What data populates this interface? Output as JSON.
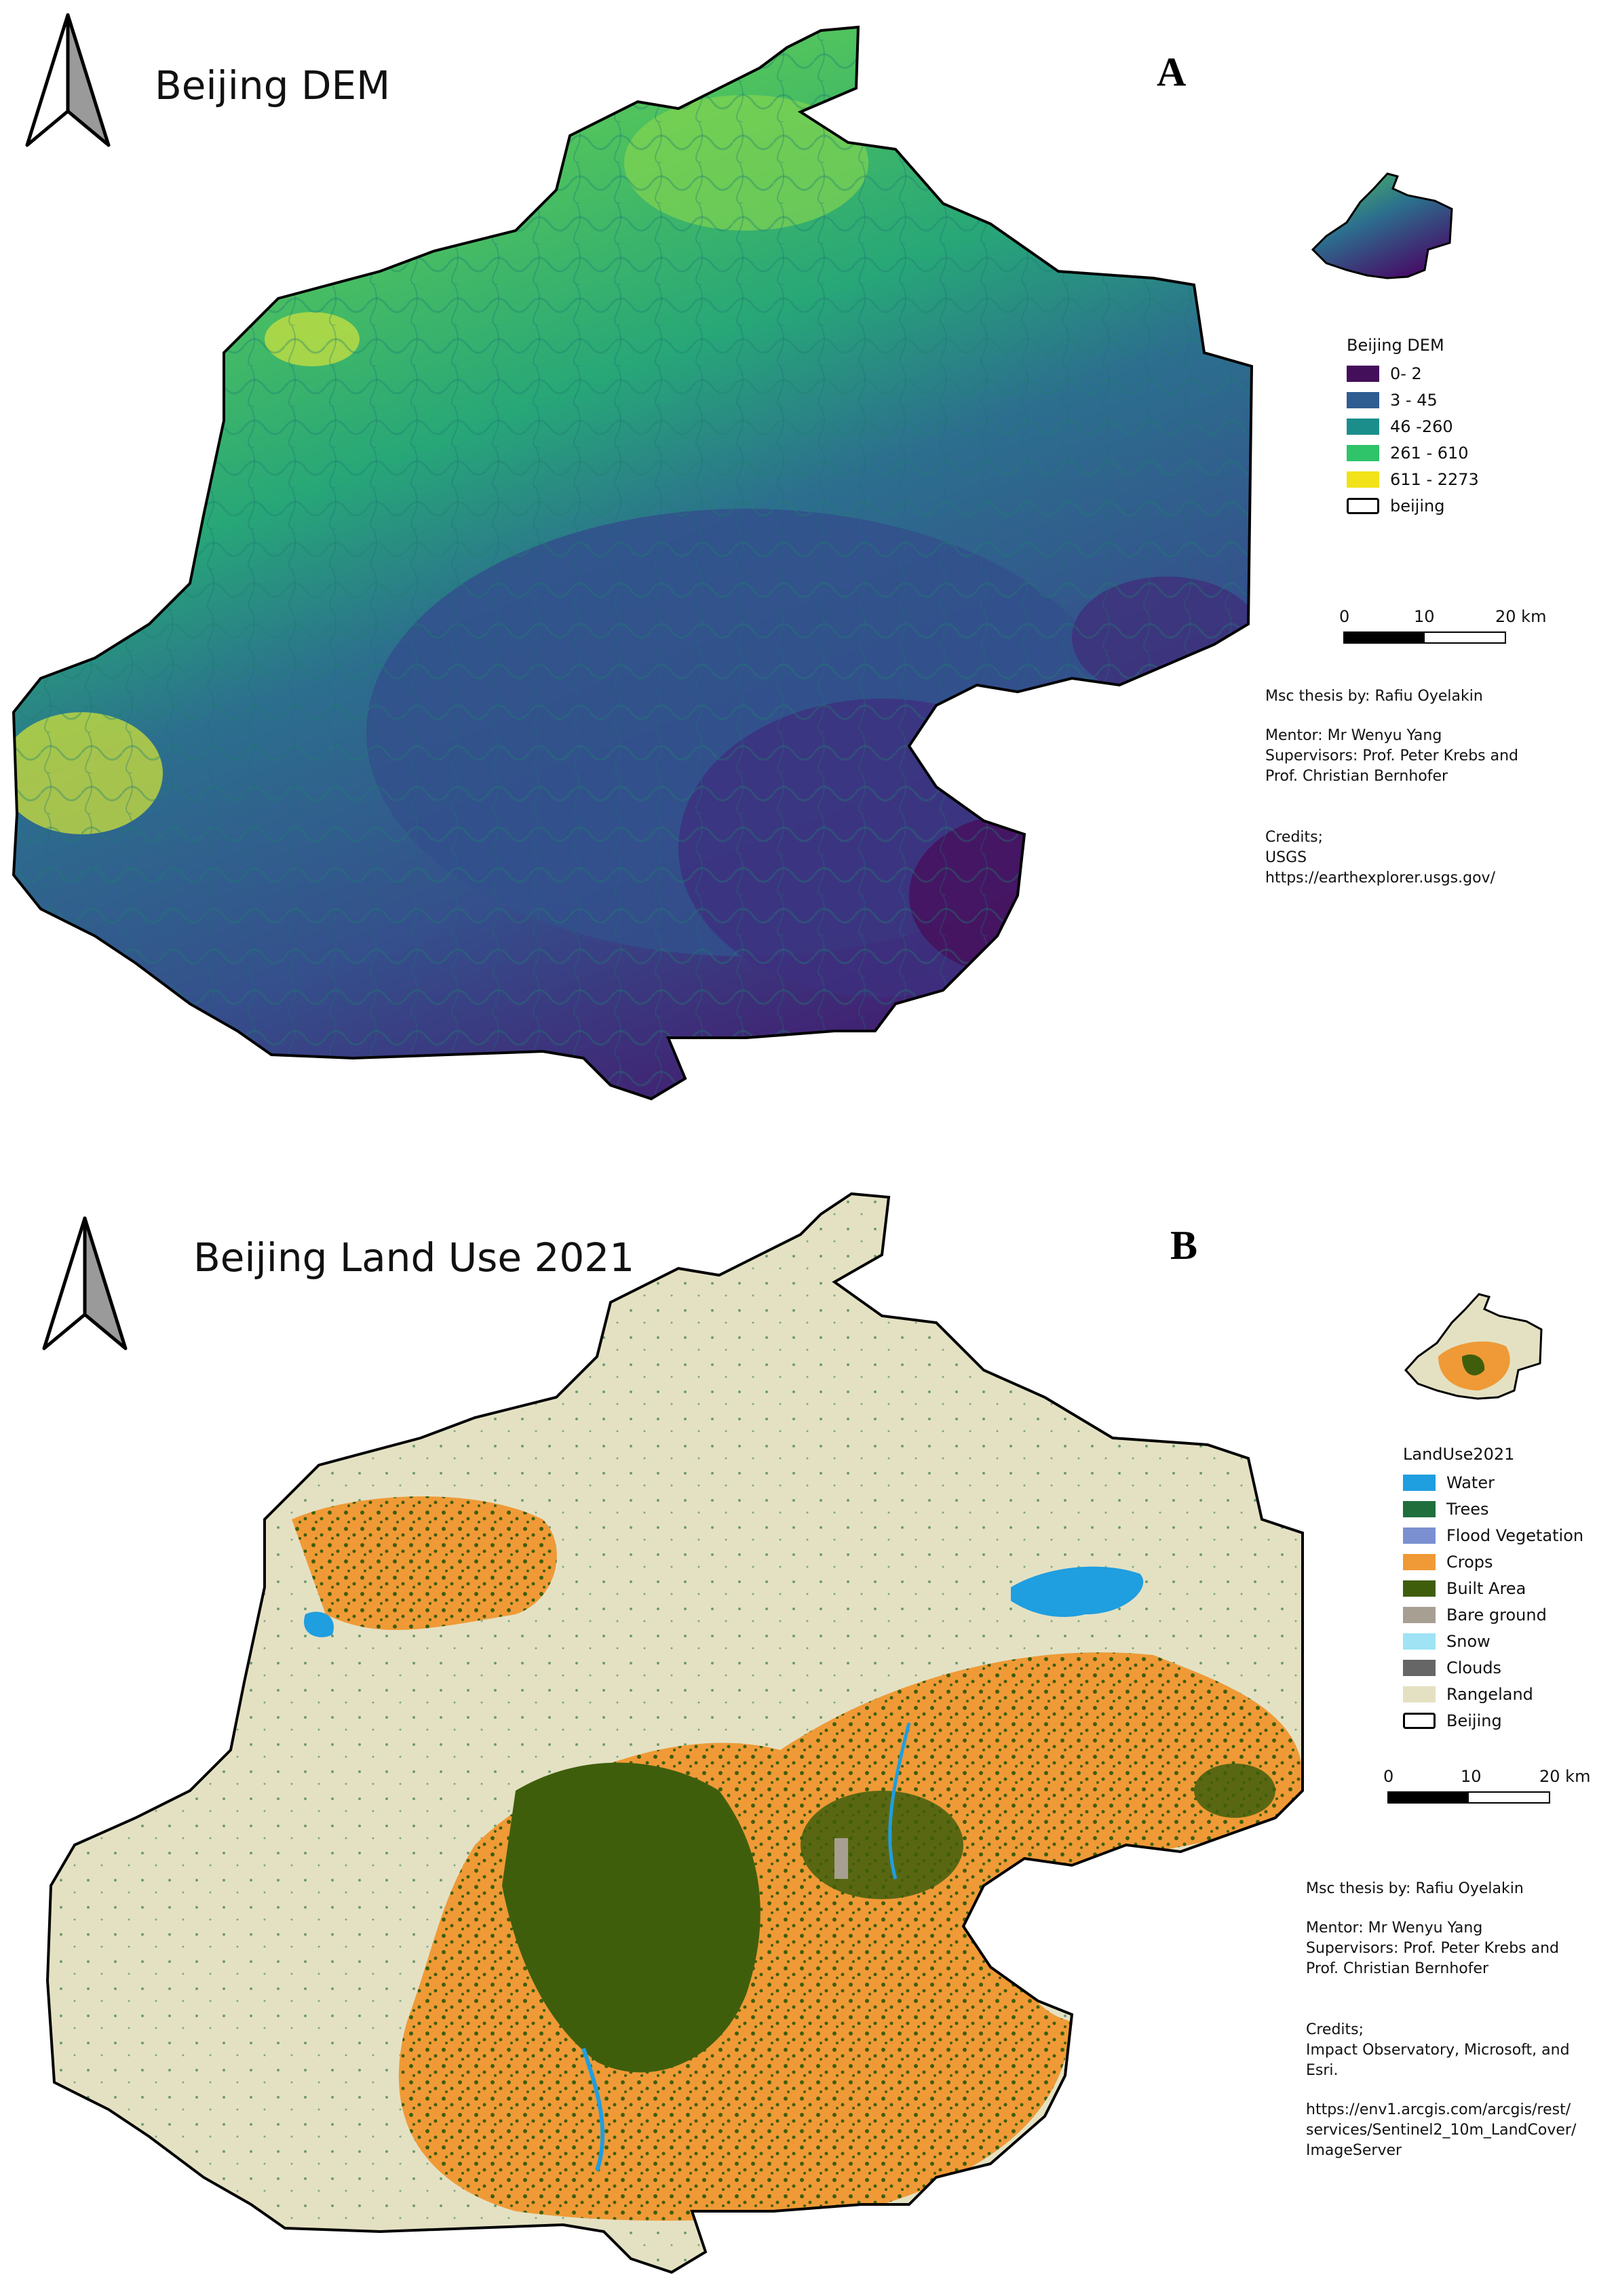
{
  "panel_a": {
    "title": "Beijing DEM",
    "letter": "A",
    "legend": {
      "title": "Beijing DEM",
      "items": [
        {
          "label": "0- 2",
          "color": "#440f5a"
        },
        {
          "label": "3 - 45",
          "color": "#2f5c91"
        },
        {
          "label": "46 -260",
          "color": "#1b8e8c"
        },
        {
          "label": "261 - 610",
          "color": "#2fc36a"
        },
        {
          "label": "611 - 2273",
          "color": "#f2e21a"
        },
        {
          "label": "beijing",
          "color": "outline"
        }
      ]
    },
    "scalebar": {
      "labels": [
        "0",
        "10",
        "20 km"
      ]
    },
    "credits": {
      "author": "Msc thesis by: Rafiu Oyelakin",
      "mentor": "Mentor: Mr Wenyu Yang",
      "supervisors_1": "Supervisors: Prof. Peter Krebs and",
      "supervisors_2": "Prof. Christian Bernhofer",
      "credits_label": "Credits;",
      "credits_1": "USGS",
      "credits_2": "https://earthexplorer.usgs.gov/"
    }
  },
  "panel_b": {
    "title": "Beijing Land Use 2021",
    "letter": "B",
    "legend": {
      "title": "LandUse2021",
      "items": [
        {
          "label": "Water",
          "color": "#1f9ee0"
        },
        {
          "label": "Trees",
          "color": "#1f6e3c"
        },
        {
          "label": "Flood Vegetation",
          "color": "#7b90d0"
        },
        {
          "label": "Crops",
          "color": "#ef9a36"
        },
        {
          "label": "Built Area",
          "color": "#3f5e0c"
        },
        {
          "label": "Bare ground",
          "color": "#a79f92"
        },
        {
          "label": "Snow",
          "color": "#9fe3f5"
        },
        {
          "label": "Clouds",
          "color": "#666666"
        },
        {
          "label": "Rangeland",
          "color": "#e4e1c3"
        },
        {
          "label": "Beijing",
          "color": "outline"
        }
      ]
    },
    "scalebar": {
      "labels": [
        "0",
        "10",
        "20 km"
      ]
    },
    "credits": {
      "author": "Msc thesis by: Rafiu Oyelakin",
      "mentor": "Mentor: Mr Wenyu Yang",
      "supervisors_1": "Supervisors: Prof. Peter Krebs and",
      "supervisors_2": "Prof. Christian Bernhofer",
      "credits_label": "Credits;",
      "credits_1": "Impact Observatory, Microsoft, and",
      "credits_2": "Esri.",
      "url_1": "https://env1.arcgis.com/arcgis/rest/",
      "url_2": "services/Sentinel2_10m_LandCover/",
      "url_3": "ImageServer"
    }
  }
}
